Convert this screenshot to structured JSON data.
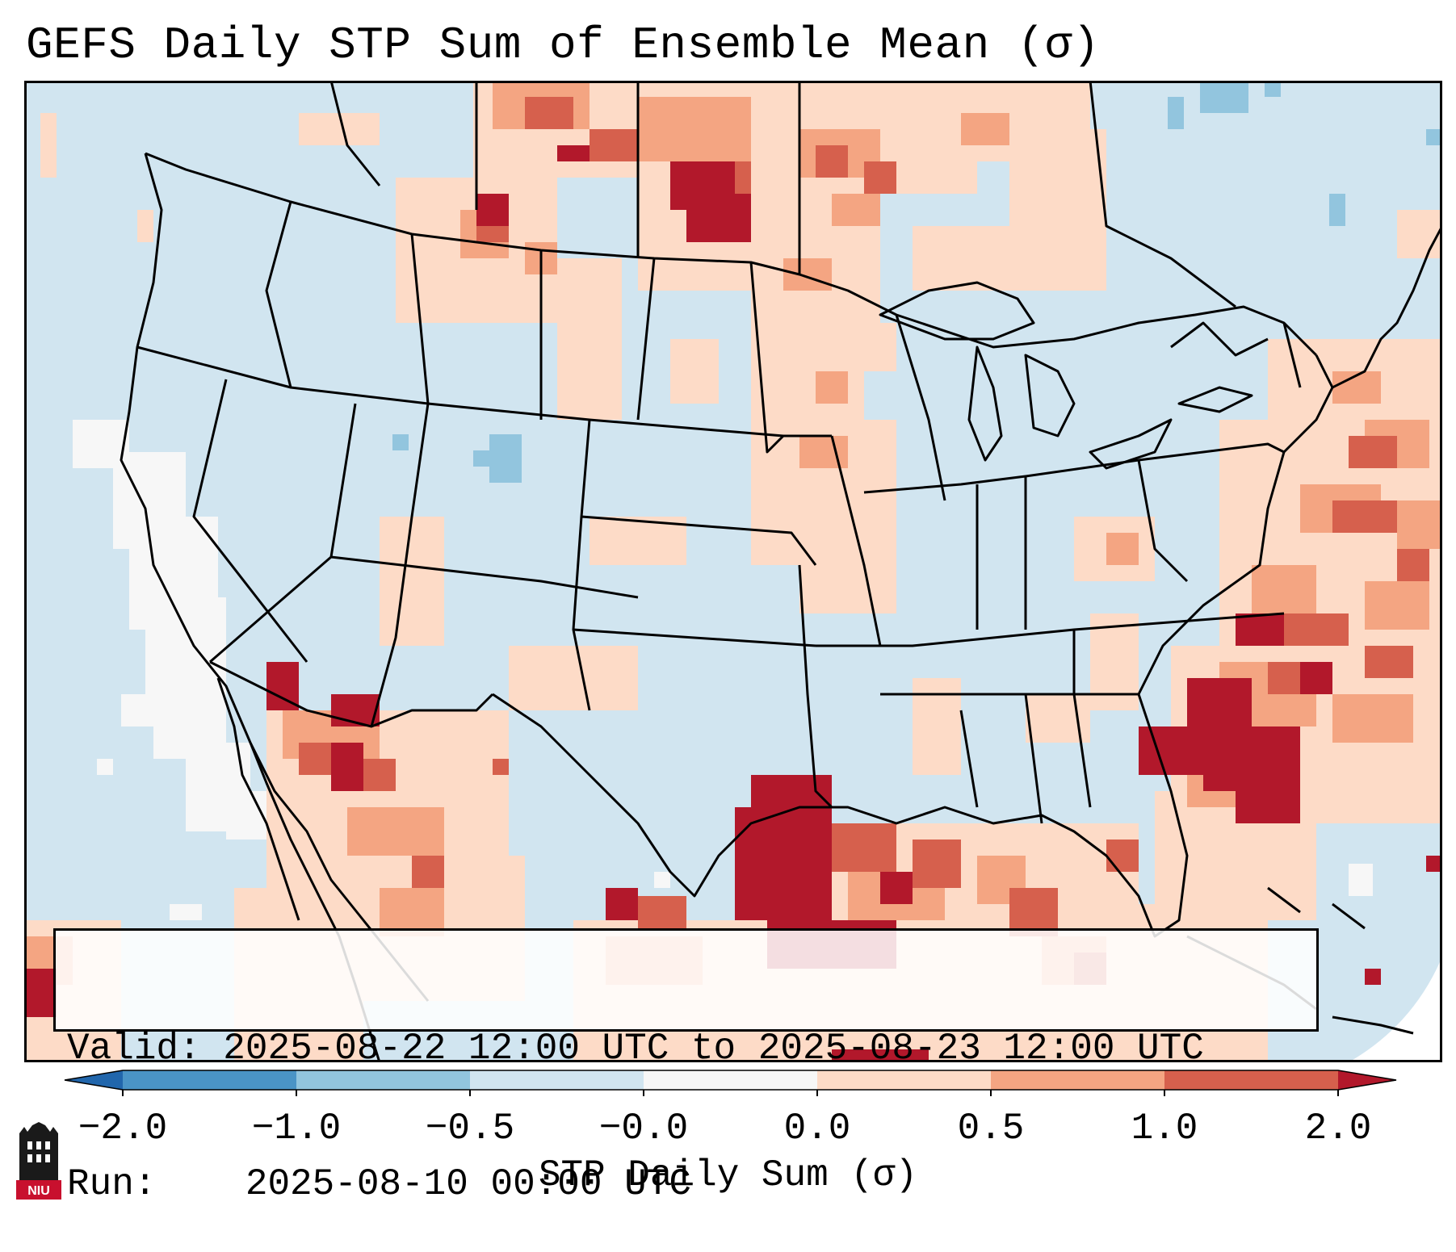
{
  "title": "GEFS Daily STP Sum of Ensemble Mean (σ)",
  "info": {
    "valid_label": "Valid:",
    "valid_value": "2025-08-22 12:00 UTC to 2025-08-23 12:00 UTC",
    "run_label": "Run:",
    "run_value": "2025-08-10 00:00 UTC"
  },
  "colorbar": {
    "label": "STP Daily Sum (σ)",
    "ticks": [
      "−2.0",
      "−1.0",
      "−0.5",
      "−0.0",
      "0.0",
      "0.5",
      "1.0",
      "2.0"
    ],
    "bins": [
      {
        "from": -2.0,
        "to": -1.0,
        "color": "#4a94c6"
      },
      {
        "from": -1.0,
        "to": -0.5,
        "color": "#92c5de"
      },
      {
        "from": -0.5,
        "to": -0.0,
        "color": "#d1e5f0"
      },
      {
        "from": -0.0,
        "to": 0.0,
        "color": "#f7f7f7"
      },
      {
        "from": 0.0,
        "to": 0.5,
        "color": "#fddbc7"
      },
      {
        "from": 0.5,
        "to": 1.0,
        "color": "#f4a582"
      },
      {
        "from": 1.0,
        "to": 2.0,
        "color": "#d6604d"
      }
    ],
    "under_color": "#2166ac",
    "over_color": "#b2182b"
  },
  "colors": {
    "background_field": "#d1e5f0",
    "neutral": "#f7f7f7",
    "weak_positive": "#fddbc7",
    "moderate_positive": "#f4a582",
    "strong_positive": "#d6604d",
    "extreme_positive": "#b2182b",
    "weak_negative": "#92c5de"
  },
  "logo": {
    "text": "NIU",
    "icon": "niu-castle-logo-icon"
  }
}
